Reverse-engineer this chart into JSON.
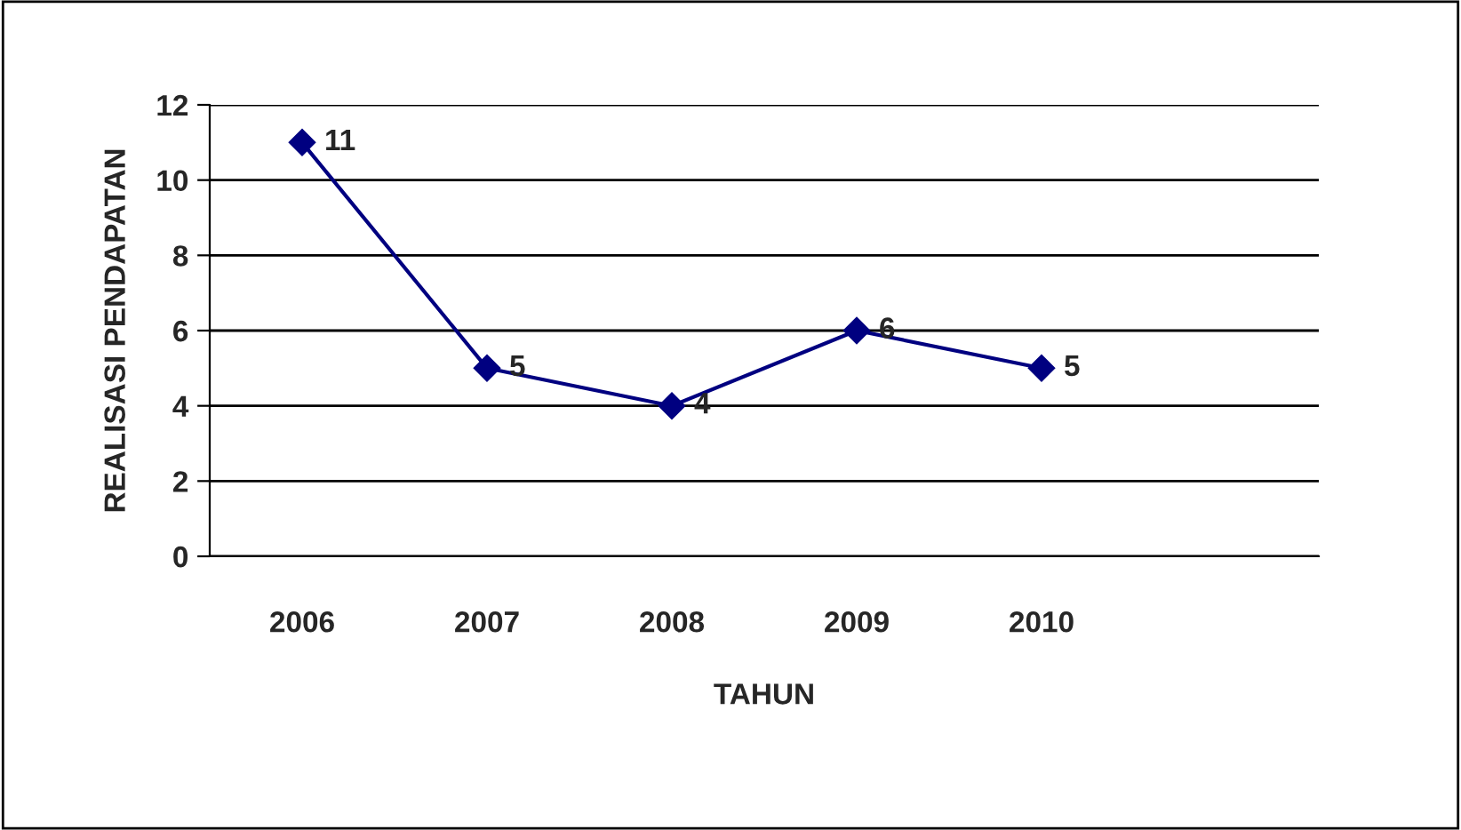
{
  "chart_data": {
    "type": "line",
    "xlabel": "TAHUN",
    "ylabel": "REALISASI PENDAPATAN",
    "categories": [
      "2006",
      "2007",
      "2008",
      "2009",
      "2010",
      null
    ],
    "series": [
      {
        "color": "#000080",
        "values": [
          11,
          5,
          4,
          6,
          5,
          null
        ]
      }
    ],
    "ylim": [
      0,
      12
    ],
    "yticks": [
      0,
      2,
      4,
      6,
      8,
      10,
      12
    ],
    "grid": "y",
    "marker": "diamond",
    "line_style": "solid",
    "data_labels": true,
    "legend": false
  }
}
